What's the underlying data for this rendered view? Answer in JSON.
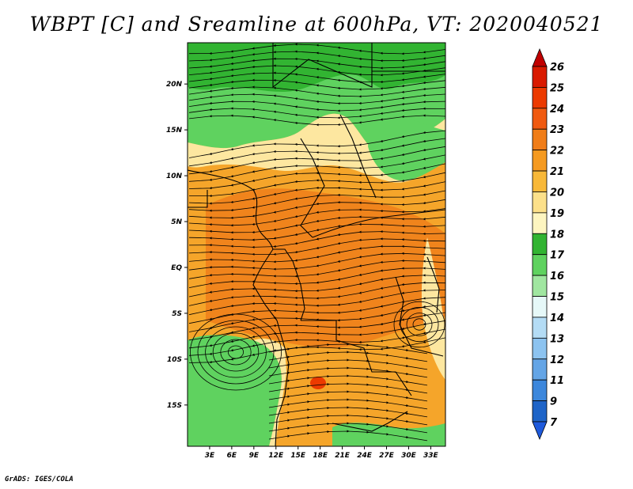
{
  "title": "WBPT [C] and Sreamline at 600hPa, VT: 2020040521",
  "footer": "GrADS: IGES/COLA",
  "map": {
    "lat_range": [
      -19.5,
      24.5
    ],
    "lon_range": [
      0,
      35
    ],
    "lat_ticks": [
      {
        "value": 20,
        "label": "20N"
      },
      {
        "value": 15,
        "label": "15N"
      },
      {
        "value": 10,
        "label": "10N"
      },
      {
        "value": 5,
        "label": "5N"
      },
      {
        "value": 0,
        "label": "EQ"
      },
      {
        "value": -5,
        "label": "5S"
      },
      {
        "value": -10,
        "label": "10S"
      },
      {
        "value": -15,
        "label": "15S"
      }
    ],
    "lon_ticks": [
      {
        "value": 3,
        "label": "3E"
      },
      {
        "value": 6,
        "label": "6E"
      },
      {
        "value": 9,
        "label": "9E"
      },
      {
        "value": 12,
        "label": "12E"
      },
      {
        "value": 15,
        "label": "15E"
      },
      {
        "value": 18,
        "label": "18E"
      },
      {
        "value": 21,
        "label": "21E"
      },
      {
        "value": 24,
        "label": "24E"
      },
      {
        "value": 27,
        "label": "27E"
      },
      {
        "value": 30,
        "label": "30E"
      },
      {
        "value": 33,
        "label": "33E"
      }
    ]
  },
  "colorbar": {
    "levels": [
      {
        "label": "26",
        "color": "#c00000"
      },
      {
        "label": "25",
        "color": "#d91a00"
      },
      {
        "label": "24",
        "color": "#ec3a00"
      },
      {
        "label": "23",
        "color": "#f05a10"
      },
      {
        "label": "22",
        "color": "#f07d18"
      },
      {
        "label": "21",
        "color": "#f59a20"
      },
      {
        "label": "20",
        "color": "#f8b838"
      },
      {
        "label": "19",
        "color": "#fce08a"
      },
      {
        "label": "18",
        "color": "#fdf5c0"
      },
      {
        "label": "17",
        "color": "#32b432"
      },
      {
        "label": "16",
        "color": "#5fd25f"
      },
      {
        "label": "15",
        "color": "#a0e6a0"
      },
      {
        "label": "14",
        "color": "#e6f8f8"
      },
      {
        "label": "13",
        "color": "#b4dcf5"
      },
      {
        "label": "12",
        "color": "#8cc3f0"
      },
      {
        "label": "11",
        "color": "#64a5e6"
      },
      {
        "label": "9",
        "color": "#3c87dc"
      },
      {
        "label": "7",
        "color": "#1e64c8"
      }
    ],
    "bottom_color": "#1e5adc"
  },
  "colors": {
    "orange": "#f59a20",
    "light_orange": "#f8b838",
    "pale_yellow": "#fdf0b0",
    "green": "#32b432",
    "light_green": "#5fd25f",
    "red": "#ec3a00"
  }
}
